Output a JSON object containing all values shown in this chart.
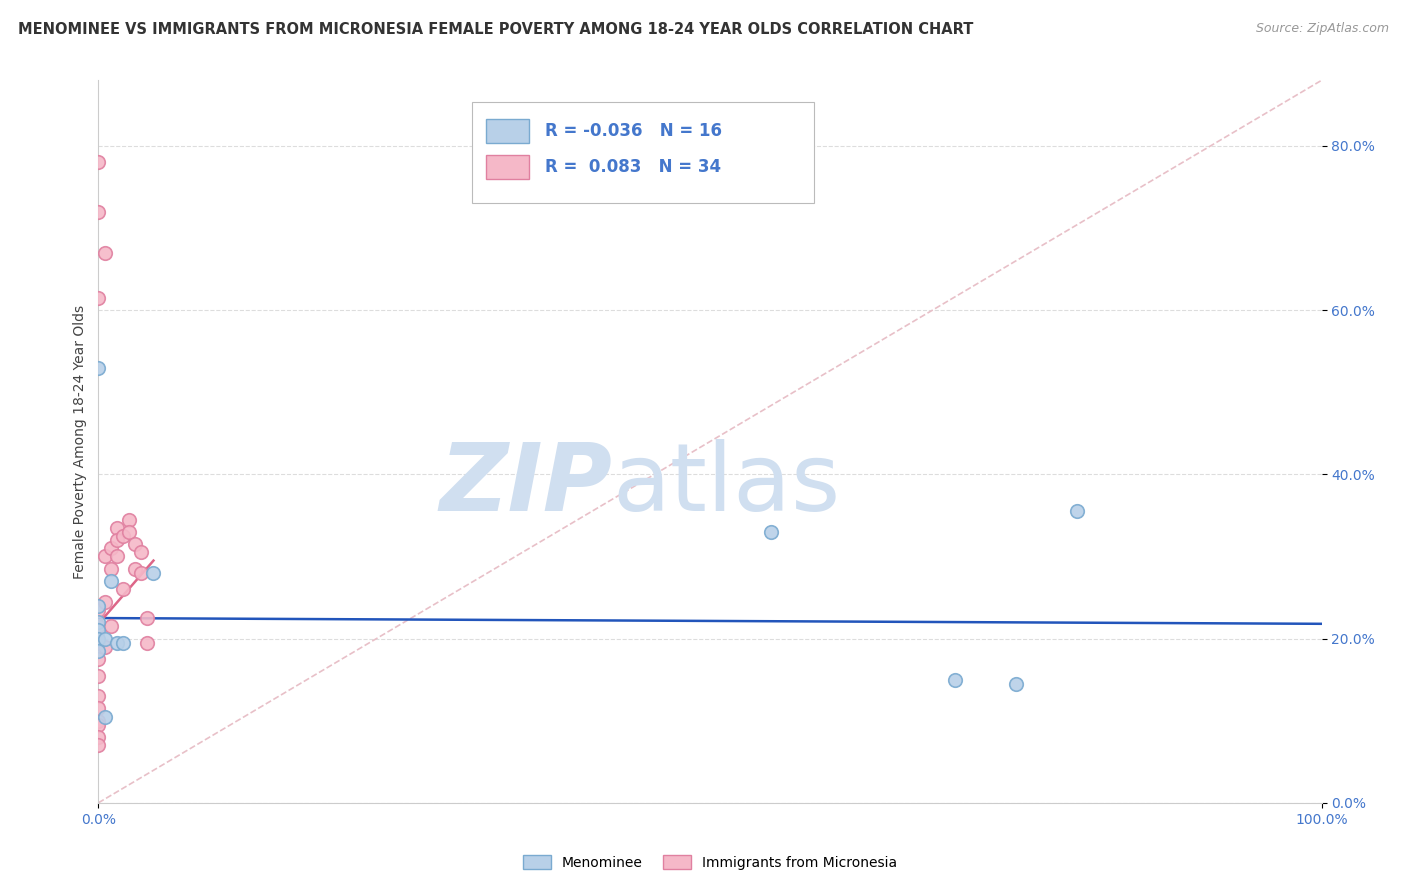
{
  "title": "MENOMINEE VS IMMIGRANTS FROM MICRONESIA FEMALE POVERTY AMONG 18-24 YEAR OLDS CORRELATION CHART",
  "source": "Source: ZipAtlas.com",
  "ylabel": "Female Poverty Among 18-24 Year Olds",
  "xlim": [
    0.0,
    1.0
  ],
  "ylim": [
    0.0,
    0.88
  ],
  "yticks": [
    0.0,
    0.2,
    0.4,
    0.6,
    0.8
  ],
  "ytick_labels": [
    "0.0%",
    "20.0%",
    "40.0%",
    "60.0%",
    "80.0%"
  ],
  "xticks": [
    0.0,
    1.0
  ],
  "xtick_labels": [
    "0.0%",
    "100.0%"
  ],
  "grid_color": "#dddddd",
  "background_color": "#ffffff",
  "menominee_R": -0.036,
  "menominee_N": 16,
  "micronesia_R": 0.083,
  "micronesia_N": 34,
  "menominee_color": "#b8d0e8",
  "micronesia_color": "#f5b8c8",
  "menominee_edge": "#7aaad0",
  "micronesia_edge": "#e080a0",
  "trend_blue_color": "#2255bb",
  "trend_pink_color": "#dd6688",
  "diagonal_color": "#e8c0c8",
  "right_tick_color": "#4477cc",
  "menominee_x": [
    0.0,
    0.0,
    0.0,
    0.0,
    0.0,
    0.0,
    0.005,
    0.005,
    0.01,
    0.015,
    0.02,
    0.045,
    0.55,
    0.7,
    0.75,
    0.8
  ],
  "menominee_y": [
    0.53,
    0.24,
    0.22,
    0.21,
    0.2,
    0.185,
    0.2,
    0.105,
    0.27,
    0.195,
    0.195,
    0.28,
    0.33,
    0.15,
    0.145,
    0.355
  ],
  "micronesia_x": [
    0.0,
    0.0,
    0.0,
    0.0,
    0.0,
    0.0,
    0.0,
    0.0,
    0.0,
    0.005,
    0.005,
    0.005,
    0.005,
    0.01,
    0.01,
    0.01,
    0.015,
    0.015,
    0.015,
    0.02,
    0.02,
    0.025,
    0.025,
    0.03,
    0.03,
    0.035,
    0.035,
    0.04,
    0.04,
    0.0,
    0.0,
    0.0,
    0.0,
    0.0
  ],
  "micronesia_y": [
    0.78,
    0.72,
    0.615,
    0.235,
    0.215,
    0.195,
    0.175,
    0.155,
    0.1,
    0.67,
    0.3,
    0.245,
    0.19,
    0.31,
    0.285,
    0.215,
    0.335,
    0.32,
    0.3,
    0.325,
    0.26,
    0.345,
    0.33,
    0.315,
    0.285,
    0.305,
    0.28,
    0.225,
    0.195,
    0.13,
    0.115,
    0.095,
    0.08,
    0.07
  ],
  "watermark_zip": "ZIP",
  "watermark_atlas": "atlas",
  "watermark_color": "#d0dff0",
  "marker_size": 95,
  "title_fontsize": 10.5,
  "label_fontsize": 10,
  "tick_fontsize": 10,
  "source_fontsize": 9,
  "legend_fontsize": 12
}
